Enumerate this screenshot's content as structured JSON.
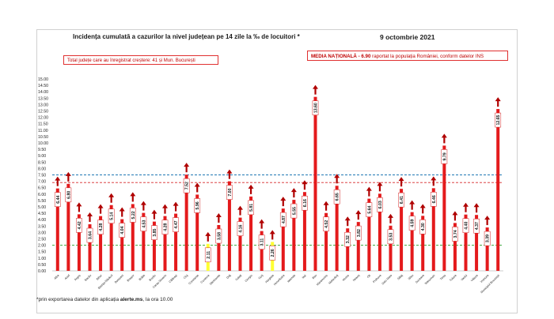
{
  "header": {
    "title": "Incidența cumulată a cazurilor la nivel județean pe 14 zile la ‰ de locuitori *",
    "date": "9 octombrie 2021"
  },
  "annotations": {
    "left_box": "Total județe care au înregistrat creștere:  41 și Mun. București",
    "right_box_title": "MEDIA NAȚIONALĂ",
    "right_box_value": "- 6.90",
    "right_box_rest": " raportat la populația României, conform datelor INS"
  },
  "footnote": {
    "prefix": "*prin exportarea datelor din aplicația ",
    "app": "alerte.ms",
    "suffix": ", la ora 10.00"
  },
  "chart_data": {
    "type": "bar",
    "title": "Incidența cumulată a cazurilor la nivel județean pe 14 zile la ‰ de locuitori *",
    "categories": [
      "Alba",
      "Arad",
      "Argeș",
      "Bacău",
      "Bihor",
      "Bistrița-Năsăud",
      "Botoșani",
      "Brașov",
      "Brăila",
      "Buzău",
      "Caraș-Severin",
      "Călărași",
      "Cluj",
      "Constanța",
      "Covasna",
      "Dâmbovița",
      "Dolj",
      "Galați",
      "Giurgiu",
      "Gorj",
      "Harghita",
      "Hunedoara",
      "Ialomița",
      "Iași",
      "Ilfov",
      "Maramureș",
      "Mehedinți",
      "Mureș",
      "Neamț",
      "Olt",
      "Prahova",
      "Satu Mare",
      "Sălaj",
      "Sibiu",
      "Suceava",
      "Teleorman",
      "Timiș",
      "Tulcea",
      "Vaslui",
      "Vâlcea",
      "Vrancea",
      "Municipiul București"
    ],
    "value_labels": [
      "6.44",
      "6.80",
      "4.42",
      "3.64",
      "4.28",
      "5.14",
      "4.04",
      "5.22",
      "4.53",
      "3.85",
      "4.28",
      "4.47",
      "7.52",
      "5.96",
      "2.11",
      "3.58",
      "7.00",
      "4.16",
      "5.81",
      "3.11",
      "2.26",
      "4.87",
      "5.55",
      "6.16",
      "13.60",
      "4.52",
      "6.65",
      "3.32",
      "3.82",
      "5.64",
      "6.03",
      "3.53",
      "6.41",
      "4.59",
      "4.30",
      "6.46",
      "9.79",
      "3.74",
      "4.40",
      "4.37",
      "3.39",
      "12.65"
    ],
    "values": [
      6.44,
      6.8,
      4.42,
      3.64,
      4.28,
      5.14,
      4.04,
      5.22,
      4.53,
      3.85,
      4.28,
      4.47,
      7.52,
      5.96,
      2.11,
      3.58,
      7.0,
      4.16,
      5.81,
      3.11,
      2.26,
      4.87,
      5.55,
      6.16,
      13.6,
      4.52,
      6.65,
      3.32,
      3.82,
      5.64,
      6.03,
      3.53,
      6.41,
      4.59,
      4.3,
      6.46,
      9.79,
      3.74,
      4.4,
      4.37,
      3.39,
      12.65
    ],
    "highlighted_categories": [
      "Covasna",
      "Harghita"
    ],
    "trend": "up",
    "yticks": [
      "0.00",
      "0.50",
      "1.00",
      "1.50",
      "2.00",
      "2.50",
      "3.00",
      "3.50",
      "4.00",
      "4.50",
      "5.00",
      "5.50",
      "6.00",
      "6.50",
      "7.00",
      "7.50",
      "8.00",
      "8.50",
      "9.00",
      "9.50",
      "10.00",
      "10.50",
      "11.00",
      "11.50",
      "12.00",
      "12.50",
      "13.00",
      "13.50",
      "14.00",
      "14.50",
      "15.00"
    ],
    "ylim": [
      0,
      15
    ],
    "reference_lines": [
      {
        "value": 7.5,
        "color": "#1f77b4",
        "style": "dashed"
      },
      {
        "value": 6.9,
        "color": "#d62728",
        "style": "dashed"
      },
      {
        "value": 2.0,
        "color": "#2ca02c",
        "style": "dashed"
      }
    ],
    "bar_color": "#e41a1c",
    "highlight_color": "#ffff33",
    "arrow_color": "#b00000",
    "grid": false,
    "xlabel": "",
    "ylabel": ""
  }
}
